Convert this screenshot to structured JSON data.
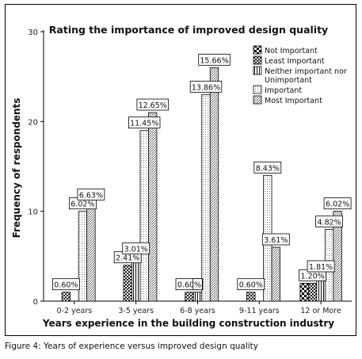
{
  "caption": "Figure 4: Years of experience versus improved design quality",
  "chart_data": {
    "type": "bar",
    "title": "Rating the importance of improved design quality",
    "xlabel": "Years experience in the building construction industry",
    "ylabel": "Frequency of respondents",
    "ylim": [
      0,
      30
    ],
    "yticks": [
      0,
      10,
      20,
      30
    ],
    "categories": [
      "0-2 years",
      "3-5 years",
      "6-8 years",
      "9-11 years",
      "12 or More"
    ],
    "series": [
      {
        "name": "Not Important",
        "values": [
          0,
          0,
          0,
          0,
          2
        ],
        "labels": [
          "",
          "",
          "",
          "",
          ""
        ]
      },
      {
        "name": "Least Important",
        "values": [
          1,
          4,
          1,
          1,
          2
        ],
        "labels": [
          "0.60%",
          "2.41%",
          "0.60%",
          "0.60%",
          "1.20%"
        ]
      },
      {
        "name": "Neither important nor Unimportant",
        "values": [
          0,
          5,
          1,
          0,
          3
        ],
        "labels": [
          "",
          "3.01%",
          "%",
          "",
          "1.81%"
        ]
      },
      {
        "name": "Important",
        "values": [
          10,
          19,
          23,
          14,
          8
        ],
        "labels": [
          "6.02%",
          "11.45%",
          "13.86%",
          "8.43%",
          "4.82%"
        ]
      },
      {
        "name": "Most Important",
        "values": [
          11,
          21,
          26,
          6,
          10
        ],
        "labels": [
          "6.63%",
          "12.65%",
          "15.66%",
          "3.61%",
          "6.02%"
        ]
      }
    ],
    "legend_position": "top-right",
    "grid": false
  }
}
